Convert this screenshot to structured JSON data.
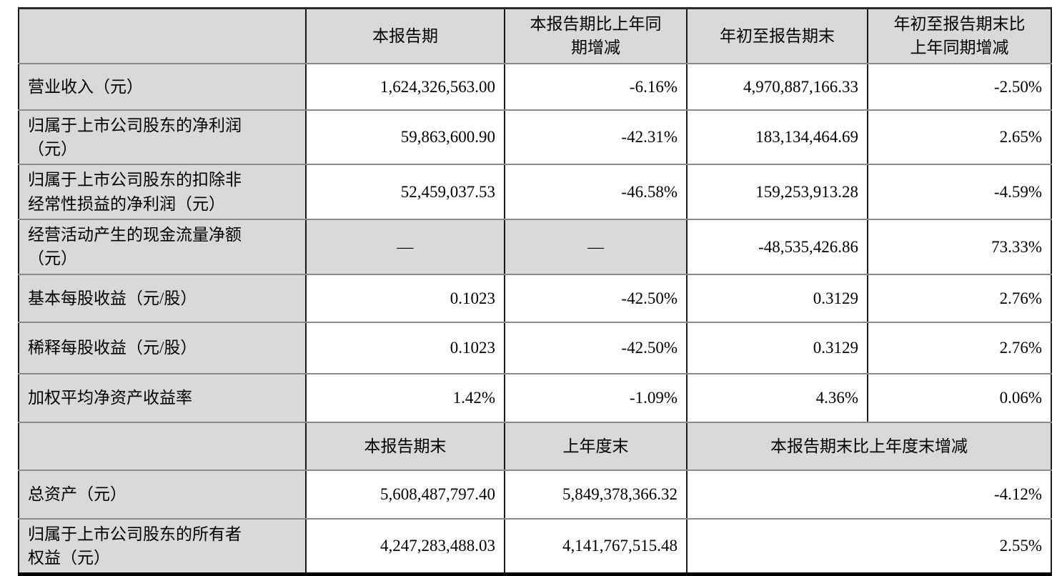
{
  "table": {
    "title_semantic": "quarterly-report-key-financials",
    "colors": {
      "shaded_cell_bg": "#d9d9d9",
      "horizontal_rule": "#8a8a8a",
      "vertical_rule": "#1a1a1a",
      "text": "#000000"
    },
    "header1": {
      "corner": "",
      "cols": [
        "本报告期",
        "本报告期比上年同\n期增减",
        "年初至报告期末",
        "年初至报告期末比\n上年同期增减"
      ]
    },
    "body1": [
      {
        "label": "营业收入（元）",
        "values": [
          "1,624,326,563.00",
          "-6.16%",
          "4,970,887,166.33",
          "-2.50%"
        ],
        "dash_cols": []
      },
      {
        "label": "归属于上市公司股东的净利润\n（元）",
        "values": [
          "59,863,600.90",
          "-42.31%",
          "183,134,464.69",
          "2.65%"
        ],
        "dash_cols": []
      },
      {
        "label": "归属于上市公司股东的扣除非\n经常性损益的净利润（元）",
        "values": [
          "52,459,037.53",
          "-46.58%",
          "159,253,913.28",
          "-4.59%"
        ],
        "dash_cols": []
      },
      {
        "label": "经营活动产生的现金流量净额\n（元）",
        "values": [
          "—",
          "—",
          "-48,535,426.86",
          "73.33%"
        ],
        "dash_cols": [
          0,
          1
        ]
      },
      {
        "label": "基本每股收益（元/股）",
        "values": [
          "0.1023",
          "-42.50%",
          "0.3129",
          "2.76%"
        ],
        "dash_cols": []
      },
      {
        "label": "稀释每股收益（元/股）",
        "values": [
          "0.1023",
          "-42.50%",
          "0.3129",
          "2.76%"
        ],
        "dash_cols": []
      },
      {
        "label": "加权平均净资产收益率",
        "values": [
          "1.42%",
          "-1.09%",
          "4.36%",
          "0.06%"
        ],
        "dash_cols": []
      }
    ],
    "header2": {
      "corner": "",
      "cols": [
        "本报告期末",
        "上年度末",
        "本报告期末比上年度末增减"
      ]
    },
    "body2": [
      {
        "label": "总资产（元）",
        "values": [
          "5,608,487,797.40",
          "5,849,378,366.32",
          "-4.12%"
        ]
      },
      {
        "label": "归属于上市公司股东的所有者\n权益（元）",
        "values": [
          "4,247,283,488.03",
          "4,141,767,515.48",
          "2.55%"
        ]
      }
    ]
  }
}
